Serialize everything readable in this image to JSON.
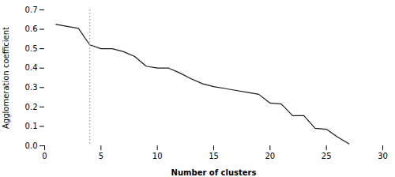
{
  "chart_data": {
    "type": "line",
    "xlabel": "Number of clusters",
    "ylabel": "Agglomeration coefficient",
    "x": [
      1,
      2,
      3,
      4,
      5,
      6,
      7,
      8,
      9,
      10,
      11,
      12,
      13,
      14,
      15,
      16,
      17,
      18,
      19,
      20,
      21,
      22,
      23,
      24,
      25,
      26,
      27
    ],
    "values": [
      0.625,
      0.615,
      0.605,
      0.52,
      0.5,
      0.5,
      0.485,
      0.46,
      0.41,
      0.4,
      0.4,
      0.375,
      0.345,
      0.32,
      0.305,
      0.295,
      0.285,
      0.275,
      0.265,
      0.22,
      0.215,
      0.155,
      0.155,
      0.09,
      0.085,
      0.045,
      0.01
    ],
    "color": "#1a1a1a",
    "vlines": [
      {
        "x": 4,
        "color": "#999999",
        "line_style": "dotted"
      }
    ],
    "xlim": [
      0,
      30
    ],
    "ylim": [
      0.0,
      0.7
    ],
    "xticks": [
      0,
      5,
      10,
      15,
      20,
      25,
      30
    ],
    "yticks": [
      {
        "value": 0.0,
        "label": "0.0"
      },
      0.1,
      0.2,
      0.3,
      0.4,
      0.5,
      0.6,
      0.7
    ],
    "grid": false
  }
}
